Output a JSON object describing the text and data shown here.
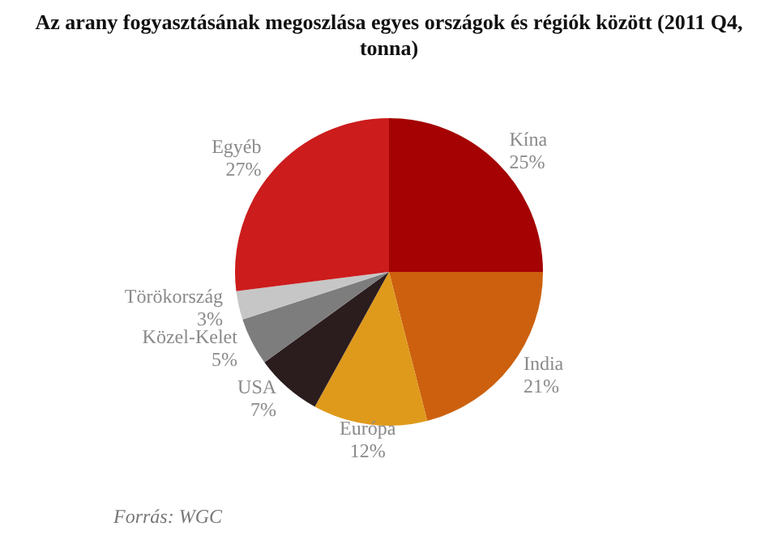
{
  "chart_data": {
    "type": "pie",
    "title": "Az arany fogyasztásának megoszlása egyes országok és régiók között (2011 Q4, tonna)",
    "categories": [
      "Kína",
      "India",
      "Európa",
      "USA",
      "Közel-Kelet",
      "Törökország",
      "Egyéb"
    ],
    "values": [
      25,
      21,
      12,
      7,
      5,
      3,
      27
    ],
    "value_labels": [
      "25%",
      "21%",
      "12%",
      "7%",
      "5%",
      "3%",
      "27%"
    ],
    "colors": [
      "#a50303",
      "#cc600e",
      "#df9a1c",
      "#2b1c1e",
      "#7d7d7d",
      "#c6c6c6",
      "#cc1c1c"
    ],
    "legend": false,
    "annotations": [
      "Forrás: WGC"
    ]
  }
}
